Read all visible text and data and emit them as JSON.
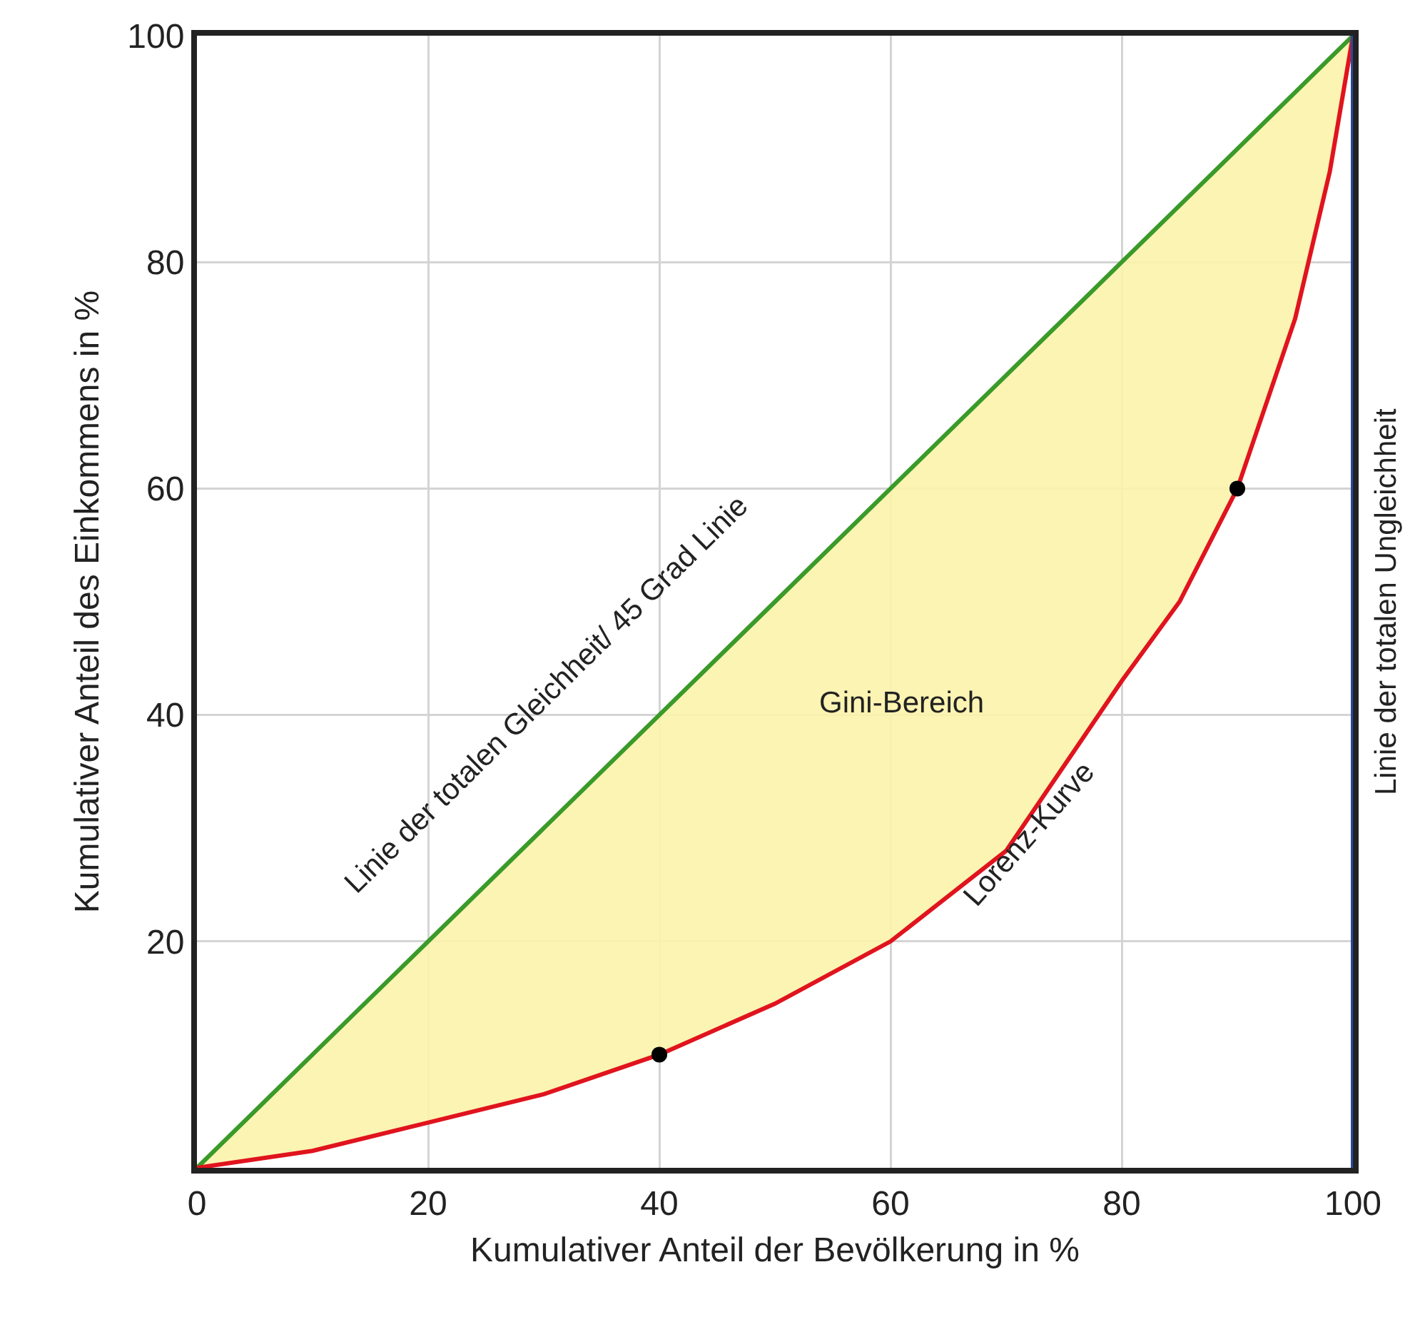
{
  "chart_data": {
    "type": "line",
    "xlabel": "Kumulativer Anteil der Bevölkerung in %",
    "ylabel": "Kumulativer Anteil des Einkommens in %",
    "xlim": [
      0,
      100
    ],
    "ylim": [
      0,
      100
    ],
    "xticks": [
      0,
      20,
      40,
      60,
      80,
      100
    ],
    "yticks": [
      {
        "value": 0,
        "label": null
      },
      20,
      40,
      60,
      80,
      100
    ],
    "grid": true,
    "legend": false,
    "series": [
      {
        "name": "Linie der totalen Gleichheit/ 45 Grad Linie",
        "color": "#3a9a2a",
        "x": [
          0,
          10,
          20,
          30,
          40,
          50,
          60,
          70,
          80,
          85,
          90,
          95,
          98,
          100
        ],
        "values": [
          0,
          10,
          20,
          30,
          40,
          50,
          60,
          70,
          80,
          85,
          90,
          95,
          98,
          100
        ],
        "lower": [
          0,
          1.5,
          4,
          6.5,
          10,
          14.5,
          20,
          28,
          43,
          50,
          60,
          75,
          88,
          100
        ],
        "upper": [
          0,
          10,
          20,
          30,
          40,
          50,
          60,
          70,
          80,
          85,
          90,
          95,
          98,
          100
        ]
      },
      {
        "name": "Lorenz-Kurve",
        "color": "#e0141e",
        "x": [
          0,
          10,
          20,
          30,
          40,
          50,
          60,
          70,
          80,
          85,
          90,
          95,
          98,
          100
        ],
        "values": [
          0,
          1.5,
          4,
          6.5,
          10,
          14.5,
          20,
          28,
          43,
          50,
          60,
          75,
          88,
          100
        ]
      },
      {
        "type": "scatter",
        "color": "#000000",
        "x": [
          40,
          90
        ],
        "values": [
          10,
          60
        ]
      }
    ],
    "ref_lines": [
      {
        "axis": "x",
        "value": 100,
        "label": "Linie der totalen Ungleichheit",
        "color": "#2a4aa0"
      }
    ],
    "annotations": [
      "Gini-Bereich"
    ]
  }
}
